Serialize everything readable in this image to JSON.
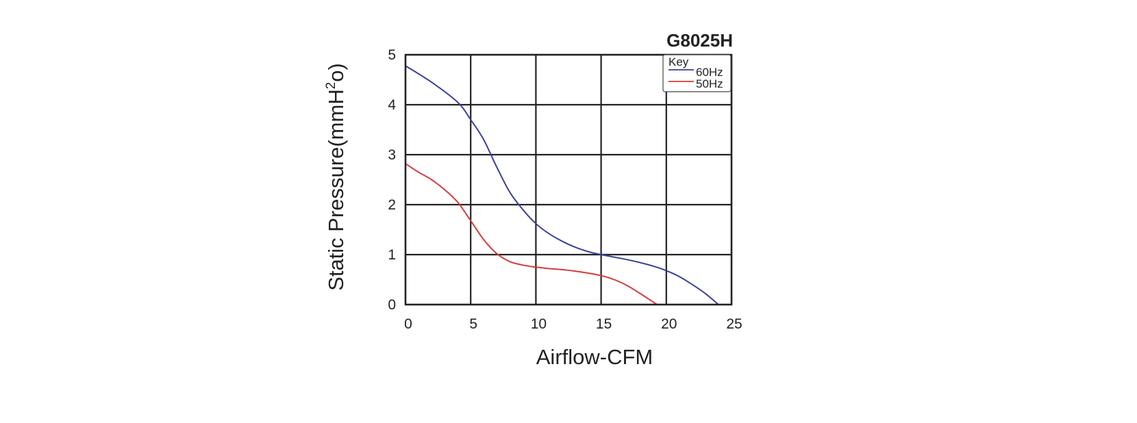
{
  "chart_data": {
    "type": "line",
    "title": "G8025H",
    "xlabel": "Airflow-CFM",
    "ylabel_prefix": "Static Pressure(mmH",
    "ylabel_sup": "2",
    "ylabel_suffix": "o)",
    "xlim": [
      0,
      25
    ],
    "ylim": [
      0,
      5
    ],
    "x_ticks": [
      "0",
      "5",
      "10",
      "15",
      "20",
      "25"
    ],
    "y_ticks": [
      "0",
      "1",
      "2",
      "3",
      "4",
      "5"
    ],
    "grid": true,
    "legend": {
      "title": "Key",
      "placement": "top-right",
      "entries": [
        "60Hz",
        "50Hz"
      ]
    },
    "series": [
      {
        "name": "60Hz",
        "color": "#3a3f9a",
        "x": [
          0,
          2,
          4,
          5,
          6,
          7,
          8,
          9,
          10,
          11,
          12,
          13,
          14,
          15,
          16,
          17,
          18,
          19,
          20,
          21,
          22,
          23,
          24
        ],
        "y": [
          4.78,
          4.45,
          4.05,
          3.7,
          3.3,
          2.75,
          2.25,
          1.9,
          1.62,
          1.42,
          1.27,
          1.15,
          1.06,
          1.0,
          0.95,
          0.9,
          0.84,
          0.77,
          0.68,
          0.56,
          0.4,
          0.22,
          0.0
        ]
      },
      {
        "name": "50Hz",
        "color": "#d63a3a",
        "x": [
          0,
          1,
          2,
          3,
          4,
          5,
          6,
          7,
          8,
          9,
          10,
          11,
          12,
          13,
          14,
          15,
          16,
          17,
          18,
          19,
          19.3
        ],
        "y": [
          2.82,
          2.65,
          2.5,
          2.3,
          2.05,
          1.68,
          1.3,
          1.02,
          0.86,
          0.79,
          0.75,
          0.72,
          0.7,
          0.67,
          0.63,
          0.58,
          0.5,
          0.38,
          0.22,
          0.05,
          0.0
        ]
      }
    ]
  }
}
